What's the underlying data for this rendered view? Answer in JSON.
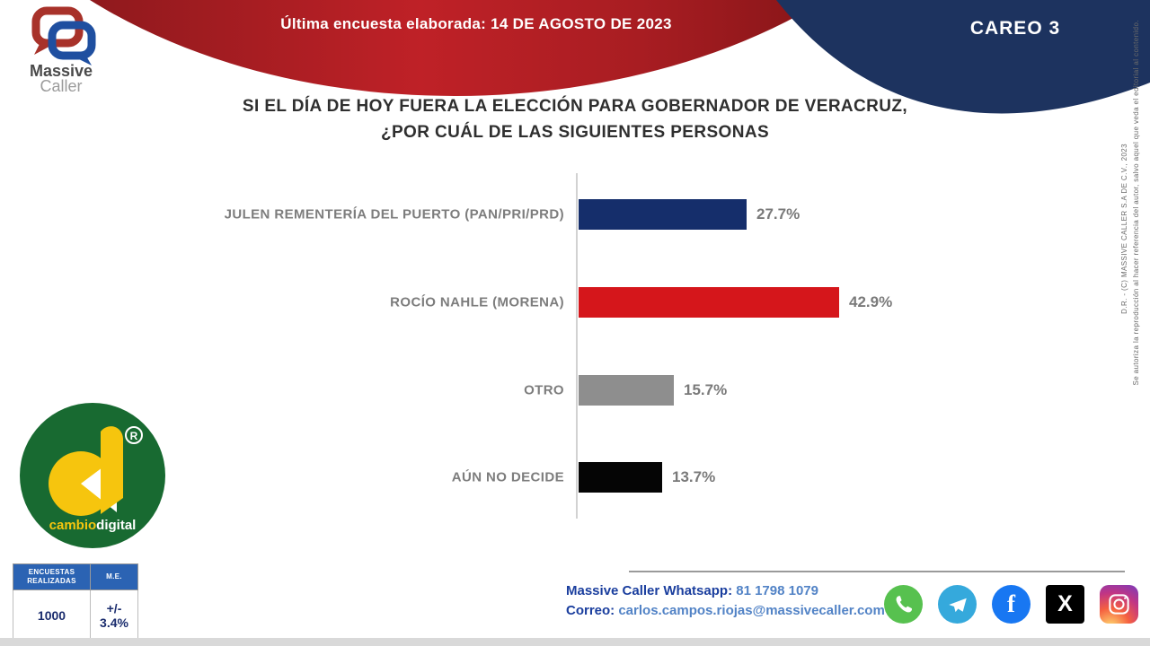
{
  "header": {
    "banner_text": "Última encuesta elaborada: 14 DE AGOSTO DE 2023",
    "careo_label": "CAREO 3",
    "logo_line1": "Massive",
    "logo_line2": "Caller"
  },
  "title": {
    "line1": "SI EL DÍA DE HOY FUERA LA ELECCIÓN PARA GOBERNADOR DE VERACRUZ,",
    "line2": "¿POR CUÁL DE LAS SIGUIENTES PERSONAS"
  },
  "chart_data": {
    "type": "bar",
    "orientation": "horizontal",
    "categories": [
      "JULEN REMENTERÍA DEL PUERTO (PAN/PRI/PRD)",
      "ROCÍO NAHLE (MORENA)",
      "OTRO",
      "AÚN NO DECIDE"
    ],
    "values": [
      27.7,
      42.9,
      15.7,
      13.7
    ],
    "value_labels": [
      "27.7%",
      "42.9%",
      "15.7%",
      "13.7%"
    ],
    "bar_colors": [
      "#152e6b",
      "#d5161b",
      "#8e8e8e",
      "#050505"
    ],
    "xlim": [
      0,
      45
    ],
    "grid": false,
    "legend": false
  },
  "stats_table": {
    "col1_header": "ENCUESTAS REALIZADAS",
    "col2_header": "M.E.",
    "col1_value": "1000",
    "col2_value": "+/- 3.4%"
  },
  "contact": {
    "whatsapp_label": "Massive Caller Whatsapp:",
    "whatsapp_number": " 81 1798 1079",
    "email_label": "Correo:",
    "email": " carlos.campos.riojas@massivecaller.com"
  },
  "social_icons": [
    "whatsapp",
    "telegram",
    "facebook",
    "x",
    "instagram"
  ],
  "facebook_glyph": "f",
  "x_glyph": "X",
  "cambio_logo": {
    "letter": "d",
    "brand_part1": "cambio",
    "brand_part2": "digital",
    "registered": "®"
  },
  "copyright": {
    "line1": "D.R. - (C) MASSIVE CALLER S.A DE C.V., 2023",
    "line2": "Se autoriza la reproducción al hacer referencia del autor, salvo aquel que veda el editorial al contenido."
  },
  "colors": {
    "banner_red": "#b51f24",
    "header_navy": "#1d335f",
    "table_header_blue": "#2b63b3",
    "green_circle": "#186a31",
    "brand_yellow": "#f6c50e"
  }
}
